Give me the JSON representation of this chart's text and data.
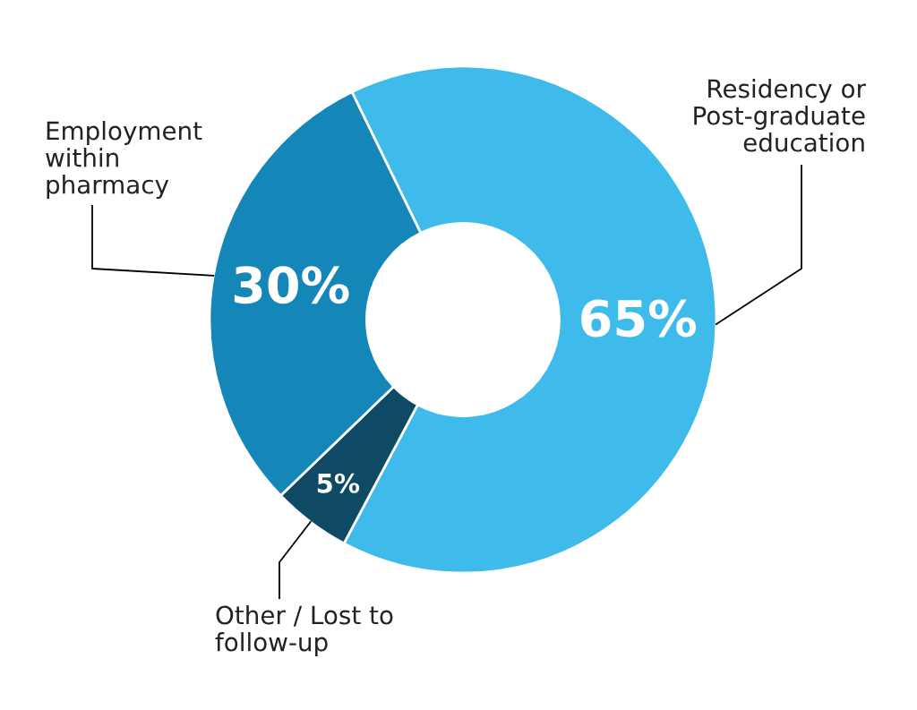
{
  "chart_data": {
    "type": "donut",
    "categories": [
      "Residency or\nPost-graduate\neducation",
      "Other / Lost to\nfollow-up",
      "Employment\nwithin\npharmacy"
    ],
    "values": [
      65,
      5,
      30
    ],
    "colors": [
      "#3fbbeb",
      "#0e4a63",
      "#1586b8"
    ],
    "value_labels": [
      "65%",
      "5%",
      "30%"
    ]
  }
}
